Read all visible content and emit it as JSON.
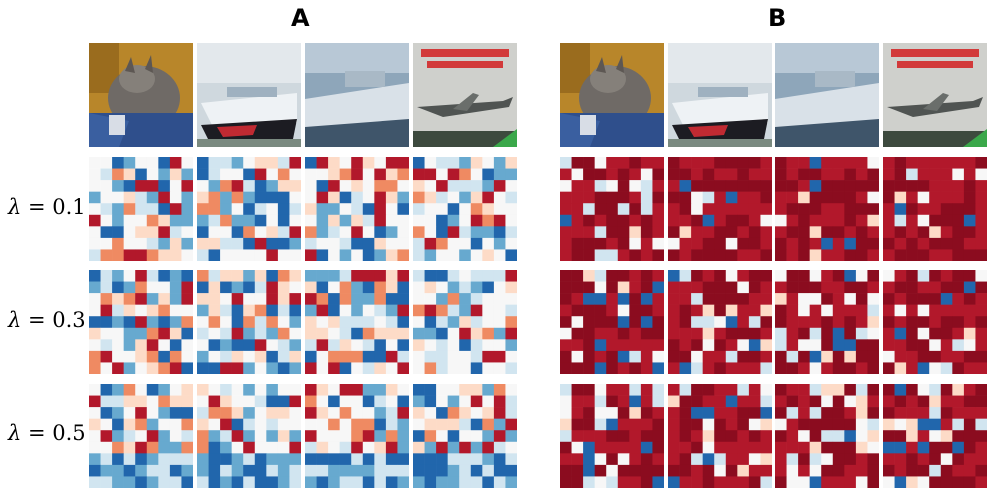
{
  "panels": [
    {
      "title": "A"
    },
    {
      "title": "B"
    }
  ],
  "rows": [
    {
      "label_var": "λ",
      "label_eq": "= 0.1"
    },
    {
      "label_var": "λ",
      "label_eq": "= 0.3"
    },
    {
      "label_var": "λ",
      "label_eq": "= 0.5"
    }
  ],
  "images": [
    {
      "subject": "cat",
      "text": ""
    },
    {
      "subject": "boat",
      "text": ""
    },
    {
      "subject": "ship",
      "text": ""
    },
    {
      "subject": "airplane-book-cover",
      "text": ""
    }
  ],
  "colors": {
    "red_dark": "#8b0c1f",
    "red": "#b2182b",
    "red_light": "#ef8a62",
    "pink": "#fddbc7",
    "white": "#f7f7f7",
    "blue_light": "#d1e5f0",
    "blue": "#67a9cf",
    "blue_dark": "#2166ac"
  }
}
